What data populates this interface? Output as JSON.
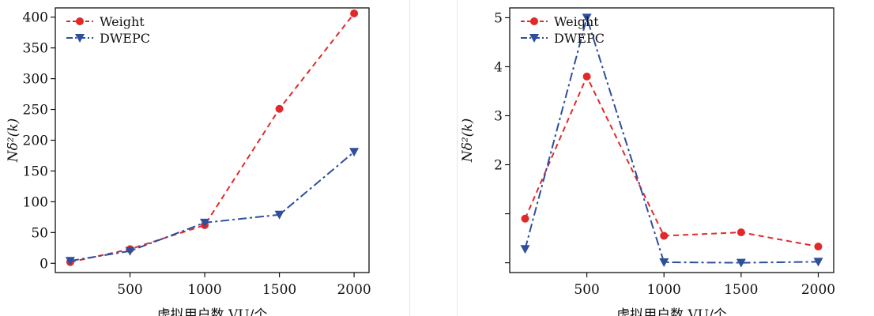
{
  "colors": {
    "weight": "#e02a2a",
    "dwepc": "#2e4f9c",
    "axis": "#111111"
  },
  "chart_data": [
    {
      "type": "line",
      "x": [
        100,
        500,
        1000,
        1500,
        2000
      ],
      "xticks": [
        500,
        1000,
        1500,
        2000
      ],
      "xlim": [
        0,
        2100
      ],
      "ylim": [
        -15,
        415
      ],
      "yticks": [
        0,
        50,
        100,
        150,
        200,
        250,
        300,
        350,
        400
      ],
      "ylabel": "Nδ²(k)",
      "xlabel": "虚拟用户数 VU/个",
      "legend_position": "top-left",
      "series": [
        {
          "name": "Weight",
          "marker": "circle",
          "line": "dashed",
          "color": "#e02a2a",
          "values": [
            2,
            23,
            62,
            251,
            406
          ]
        },
        {
          "name": "DWEPC",
          "marker": "triangle-down",
          "line": "dash-dot",
          "color": "#2e4f9c",
          "values": [
            4,
            20,
            66,
            79,
            181
          ]
        }
      ]
    },
    {
      "type": "line",
      "x": [
        100,
        500,
        1000,
        1500,
        2000
      ],
      "xticks": [
        500,
        1000,
        1500,
        2000
      ],
      "xlim": [
        0,
        2100
      ],
      "ylim": [
        -0.2,
        5.2
      ],
      "yticks": [
        2,
        3,
        4,
        5
      ],
      "yticks_unlabeled": [
        1,
        0
      ],
      "ylabel": "Nδ²(k)",
      "xlabel": "虚拟用户数 VU/个",
      "legend_position": "top-left",
      "series": [
        {
          "name": "Weight",
          "marker": "circle",
          "line": "dashed",
          "color": "#e02a2a",
          "values": [
            0.9,
            3.8,
            0.55,
            0.62,
            0.33
          ]
        },
        {
          "name": "DWEPC",
          "marker": "triangle-down",
          "line": "dash-dot",
          "color": "#2e4f9c",
          "values": [
            0.28,
            5.0,
            0.01,
            0.0,
            0.02
          ]
        }
      ]
    }
  ]
}
